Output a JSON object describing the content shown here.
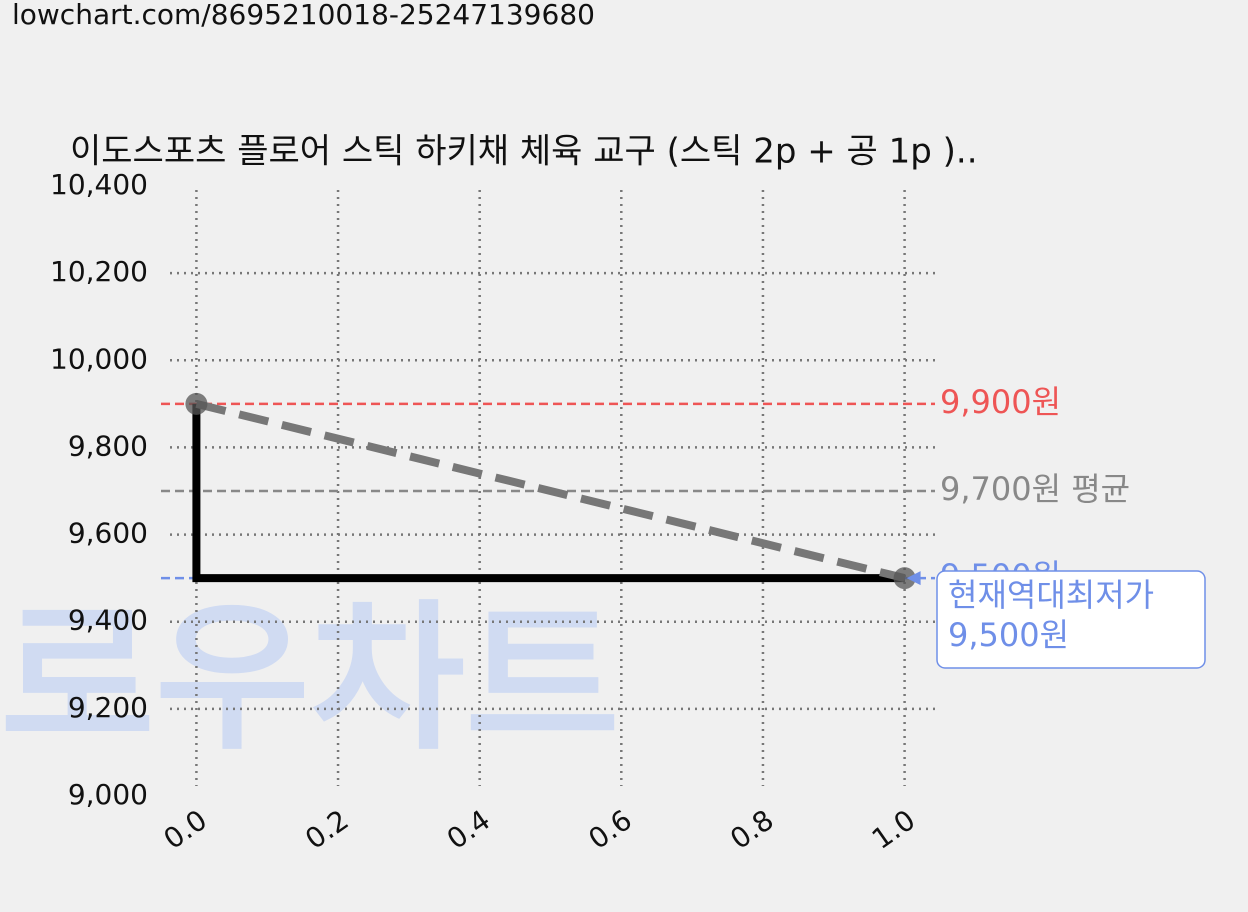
{
  "url": "lowchart.com/8695210018-25247139680",
  "chart_data": {
    "type": "line",
    "title": "이도스포츠 플로어 스틱 하키채 체육 교구 (스틱 2p + 공 1p )..",
    "watermark": "로우차트",
    "x": [
      0,
      1
    ],
    "series": [
      {
        "color": "#000000",
        "step": "pre",
        "dashed": false,
        "markers": false,
        "values": [
          9900,
          9500
        ]
      },
      {
        "color": "#777777",
        "step": null,
        "dashed": true,
        "markers": true,
        "values": [
          9900,
          9500
        ]
      }
    ],
    "xlim": [
      -0.05,
      1.05
    ],
    "ylim": [
      9000,
      10400
    ],
    "xticks": [
      {
        "value": 0,
        "label": "0.0"
      },
      0.2,
      0.4,
      0.6,
      0.8,
      {
        "value": 1,
        "label": "1.0"
      }
    ],
    "yticks": [
      {
        "value": 9000,
        "label": "9,000"
      },
      {
        "value": 9200,
        "label": "9,200"
      },
      {
        "value": 9400,
        "label": "9,400"
      },
      {
        "value": 9600,
        "label": "9,600"
      },
      {
        "value": 9800,
        "label": "9,800"
      },
      {
        "value": 10000,
        "label": "10,000"
      },
      {
        "value": 10200,
        "label": "10,200"
      },
      {
        "value": 10400,
        "label": "10,400"
      }
    ],
    "grid": true,
    "reference_lines": [
      {
        "value": 9900,
        "label": "9,900원",
        "color": "#ee5555"
      },
      {
        "value": 9700,
        "label": "9,700원 평균",
        "color": "#888888"
      },
      {
        "value": 9500,
        "label": "9,500원",
        "color": "#6f8fe8"
      }
    ],
    "annotation": {
      "x": 1,
      "y": 9500,
      "text": "현재역대최저가",
      "label": "9,500원",
      "color": "#6f8fe8"
    }
  }
}
